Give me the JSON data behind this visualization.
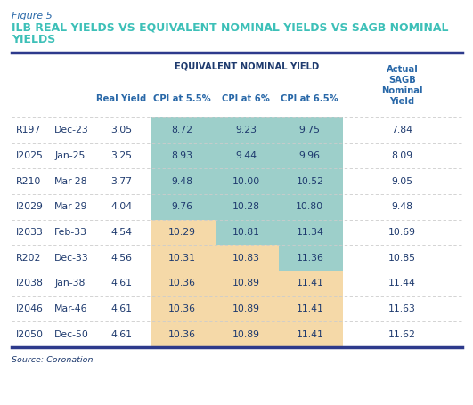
{
  "figure_label": "Figure 5",
  "title_line1": "ILB REAL YIELDS VS EQUIVALENT NOMINAL YIELDS VS SAGB NOMINAL",
  "title_line2": "YIELDS",
  "source": "Source: Coronation",
  "rows": [
    [
      "R197",
      "Dec-23",
      "3.05",
      "8.72",
      "9.23",
      "9.75",
      "7.84"
    ],
    [
      "I2025",
      "Jan-25",
      "3.25",
      "8.93",
      "9.44",
      "9.96",
      "8.09"
    ],
    [
      "R210",
      "Mar-28",
      "3.77",
      "9.48",
      "10.00",
      "10.52",
      "9.05"
    ],
    [
      "I2029",
      "Mar-29",
      "4.04",
      "9.76",
      "10.28",
      "10.80",
      "9.48"
    ],
    [
      "I2033",
      "Feb-33",
      "4.54",
      "10.29",
      "10.81",
      "11.34",
      "10.69"
    ],
    [
      "R202",
      "Dec-33",
      "4.56",
      "10.31",
      "10.83",
      "11.36",
      "10.85"
    ],
    [
      "I2038",
      "Jan-38",
      "4.61",
      "10.36",
      "10.89",
      "11.41",
      "11.44"
    ],
    [
      "I2046",
      "Mar-46",
      "4.61",
      "10.36",
      "10.89",
      "11.41",
      "11.63"
    ],
    [
      "I2050",
      "Dec-50",
      "4.61",
      "10.36",
      "10.89",
      "11.41",
      "11.62"
    ]
  ],
  "teal_bg": "#9dcfca",
  "peach_bg": "#f5d9a8",
  "header_bold_color": "#1e3a6e",
  "subheader_color": "#2968a8",
  "text_color": "#1e3a6e",
  "figure_label_color": "#2968a8",
  "title_color": "#3dc0b8",
  "white": "#ffffff",
  "divider_color": "#cccccc",
  "top_line_color": "#2d3a8c",
  "bottom_line_color": "#2d3a8c",
  "eqny_label_color": "#1e3a6e",
  "col_teal_rows": [
    4,
    5,
    6
  ]
}
